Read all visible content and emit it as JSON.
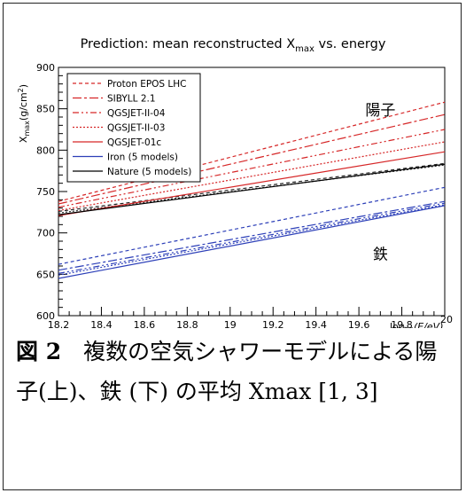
{
  "chart_data": {
    "type": "line",
    "title": "Prediction: mean reconstructed X",
    "title_sub": "max",
    "title_suffix": " vs. energy",
    "xlabel_pre": "log",
    "xlabel_sub": "10",
    "xlabel_post": "(E/eV)",
    "ylabel": "X",
    "ylabel_sub": "max",
    "ylabel_unit": "(g/cm",
    "ylabel_sup": "2",
    "ylabel_close": ")",
    "xlim": [
      18.2,
      20.0
    ],
    "ylim": [
      600,
      900
    ],
    "xticks": [
      "18.2",
      "18.4",
      "18.6",
      "18.8",
      "19",
      "19.2",
      "19.4",
      "19.6",
      "19.8",
      "20"
    ],
    "yticks": [
      "600",
      "650",
      "700",
      "750",
      "800",
      "850",
      "900"
    ],
    "legend_position": "top-left",
    "annotations": [
      {
        "text": "陽子",
        "x": 19.7,
        "y": 842
      },
      {
        "text": "鉄",
        "x": 19.7,
        "y": 668
      }
    ],
    "series": [
      {
        "name": "Proton EPOS LHC",
        "color": "#d62728",
        "dash": "4,3",
        "x": [
          18.2,
          20.0
        ],
        "y": [
          738,
          858
        ]
      },
      {
        "name": "SIBYLL 2.1",
        "color": "#d62728",
        "dash": "10,3,3,3",
        "x": [
          18.2,
          20.0
        ],
        "y": [
          735,
          843
        ]
      },
      {
        "name": "QGSJET-II-04",
        "color": "#d62728",
        "dash": "7,3,2,3,2,3",
        "x": [
          18.2,
          20.0
        ],
        "y": [
          731,
          825
        ]
      },
      {
        "name": "QGSJET-II-03",
        "color": "#d62728",
        "dash": "2,2",
        "x": [
          18.2,
          20.0
        ],
        "y": [
          727,
          810
        ]
      },
      {
        "name": "QGSJET-01c",
        "color": "#d62728",
        "dash": "",
        "x": [
          18.2,
          20.0
        ],
        "y": [
          721,
          798
        ]
      },
      {
        "name": "Iron (5 models)",
        "color": "#2c3fb8",
        "dash": "",
        "x": [
          18.2,
          20.0
        ],
        "y": [
          645,
          733
        ]
      },
      {
        "name": "Nature (5 models)",
        "color": "#000000",
        "dash": "",
        "x": [
          18.2,
          20.0
        ],
        "y": [
          722,
          783
        ]
      }
    ],
    "extra_lines": [
      {
        "color": "#2c3fb8",
        "dash": "4,3",
        "x": [
          18.2,
          20.0
        ],
        "y": [
          662,
          755
        ]
      },
      {
        "color": "#2c3fb8",
        "dash": "10,3,3,3",
        "x": [
          18.2,
          20.0
        ],
        "y": [
          655,
          738
        ]
      },
      {
        "color": "#2c3fb8",
        "dash": "7,3,2,3,2,3",
        "x": [
          18.2,
          20.0
        ],
        "y": [
          651,
          736
        ]
      },
      {
        "color": "#2c3fb8",
        "dash": "2,2",
        "x": [
          18.2,
          20.0
        ],
        "y": [
          649,
          734
        ]
      },
      {
        "color": "#222222",
        "dash": "4,3",
        "x": [
          18.2,
          20.0
        ],
        "y": [
          726,
          784
        ]
      },
      {
        "color": "#222222",
        "dash": "2,2",
        "x": [
          18.2,
          20.0
        ],
        "y": [
          724,
          782
        ]
      }
    ]
  },
  "caption": {
    "label": "図 2",
    "text": "　複数の空気シャワーモデルによる陽子(上)、鉄 (下) の平均 Xmax [1, 3]"
  }
}
